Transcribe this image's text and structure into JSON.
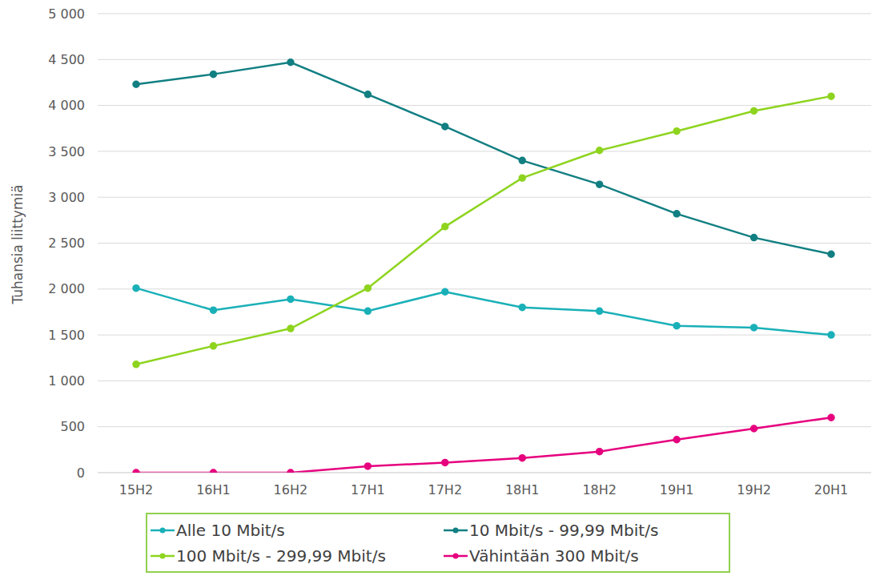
{
  "chart_data": {
    "type": "line",
    "y_label": "Tuhansia liittymiä",
    "categories": [
      "15H2",
      "16H1",
      "16H2",
      "17H1",
      "17H2",
      "18H1",
      "18H2",
      "19H1",
      "19H2",
      "20H1"
    ],
    "series": [
      {
        "name": "Alle 10 Mbit/s",
        "color": "#1ab0b8",
        "marker": "circle",
        "values": [
          2010,
          1770,
          1890,
          1760,
          1970,
          1800,
          1760,
          1600,
          1580,
          1500
        ]
      },
      {
        "name": "10 Mbit/s - 99,99 Mbit/s",
        "color": "#127f82",
        "marker": "circle",
        "values": [
          4230,
          4340,
          4470,
          4120,
          3770,
          3400,
          3140,
          2820,
          2560,
          2380
        ]
      },
      {
        "name": "100 Mbit/s - 299,99 Mbit/s",
        "color": "#8ed41f",
        "marker": "circle",
        "values": [
          1180,
          1380,
          1570,
          2010,
          2680,
          3210,
          3510,
          3720,
          3940,
          4100
        ]
      },
      {
        "name": "Vähintään 300 Mbit/s",
        "color": "#e6007e",
        "marker": "circle",
        "values": [
          0,
          0,
          0,
          70,
          110,
          160,
          230,
          360,
          480,
          600
        ]
      }
    ],
    "ylim": [
      0,
      5000
    ],
    "yticks": [
      0,
      500,
      {
        "value": 1000,
        "label": "1 000"
      },
      {
        "value": 1500,
        "label": "1 500"
      },
      {
        "value": 2000,
        "label": "2 000"
      },
      {
        "value": 2500,
        "label": "2 500"
      },
      {
        "value": 3000,
        "label": "3 000"
      },
      {
        "value": 3500,
        "label": "3 500"
      },
      {
        "value": 4000,
        "label": "4 000"
      },
      {
        "value": 4500,
        "label": "4 500"
      },
      {
        "value": 5000,
        "label": "5 000"
      }
    ],
    "grid": true,
    "legend": "bottom"
  }
}
